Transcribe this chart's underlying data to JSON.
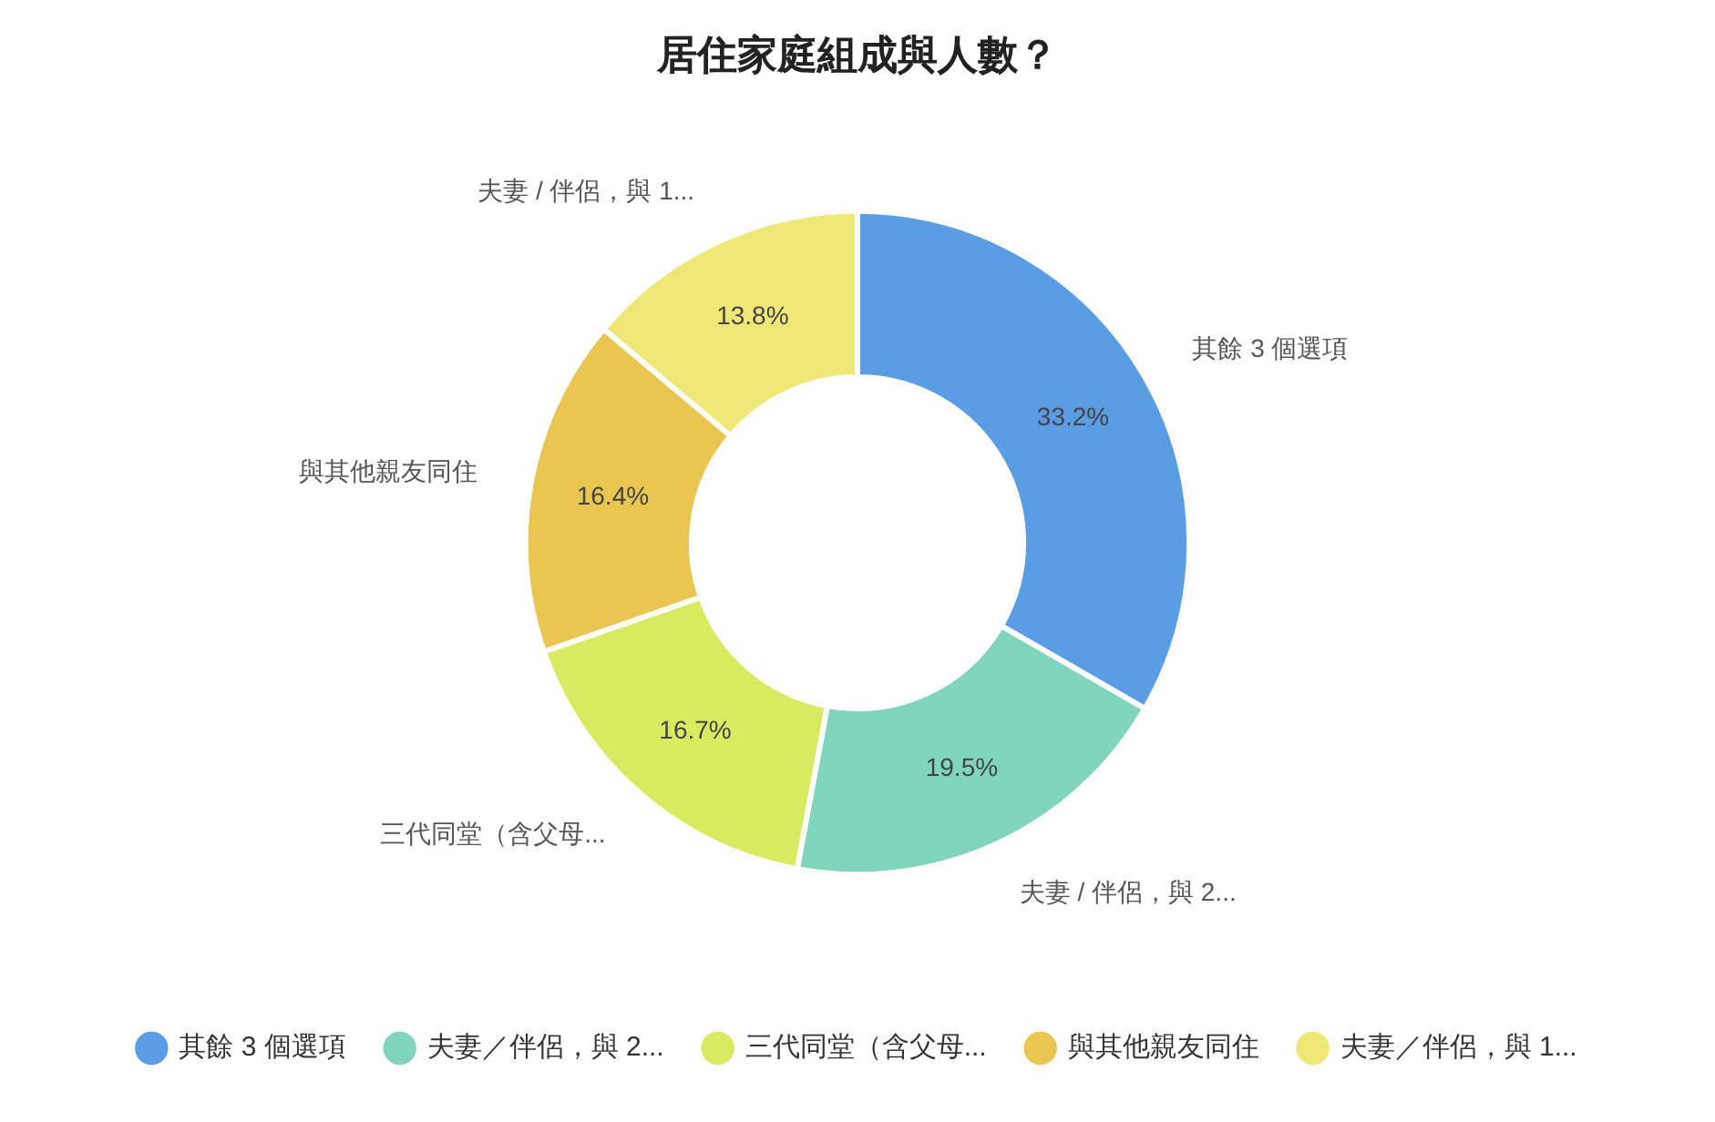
{
  "chart_data": {
    "type": "donut",
    "title": "居住家庭組成與人數？",
    "categories": [
      "其餘 3 個選項",
      "夫妻／伴侶，與 2...",
      "三代同堂（含父母...",
      "與其他親友同住",
      "夫妻／伴侶，與 1..."
    ],
    "values": [
      33.2,
      19.5,
      16.7,
      16.4,
      13.8
    ],
    "value_labels": [
      "33.2%",
      "19.5%",
      "16.7%",
      "16.4%",
      "13.8%"
    ],
    "colors": [
      "#5b9de4",
      "#82d5bd",
      "#d8ea60",
      "#e8c64f",
      "#efe776"
    ],
    "annotations": [
      {
        "text": "其餘 3 個選項",
        "x": "其餘 3 個選項"
      },
      {
        "text": "夫妻 / 伴侶，與 2...",
        "x": "夫妻／伴侶，與 2..."
      },
      {
        "text": "三代同堂（含父母...",
        "x": "三代同堂（含父母..."
      },
      {
        "text": "與其他親友同住",
        "x": "與其他親友同住"
      },
      {
        "text": "夫妻 / 伴侶，與 1...",
        "x": "夫妻／伴侶，與 1..."
      }
    ],
    "legend": "bottom"
  }
}
